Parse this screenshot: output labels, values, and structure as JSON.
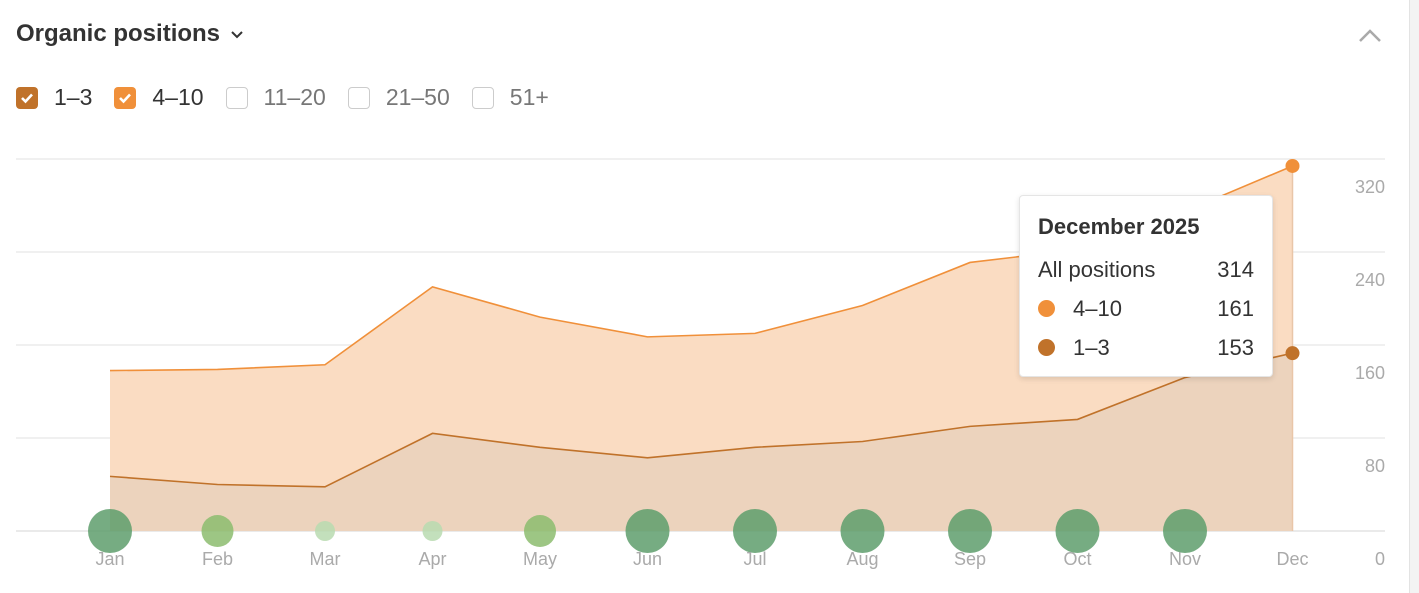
{
  "header": {
    "title": "Organic positions"
  },
  "filters": [
    {
      "label": "1–3",
      "checked": true,
      "color": "#c0722a"
    },
    {
      "label": "4–10",
      "checked": true,
      "color": "#f0903a"
    },
    {
      "label": "11–20",
      "checked": false
    },
    {
      "label": "21–50",
      "checked": false
    },
    {
      "label": "51+",
      "checked": false
    }
  ],
  "tooltip": {
    "title": "December 2025",
    "rows": [
      {
        "label": "All positions",
        "value": "314"
      },
      {
        "label": "4–10",
        "value": "161",
        "color": "#f0903a"
      },
      {
        "label": "1–3",
        "value": "153",
        "color": "#c0722a"
      }
    ]
  },
  "chart_data": {
    "type": "area",
    "stacked": true,
    "title": "Organic positions",
    "categories": [
      "Jan",
      "Feb",
      "Mar",
      "Apr",
      "May",
      "Jun",
      "Jul",
      "Aug",
      "Sep",
      "Oct",
      "Nov",
      "Dec"
    ],
    "series": [
      {
        "name": "1–3",
        "color": "#c0722a",
        "values": [
          47,
          40,
          38,
          84,
          72,
          63,
          72,
          77,
          90,
          96,
          132,
          153
        ]
      },
      {
        "name": "4–10",
        "color": "#f0903a",
        "values": [
          91,
          99,
          105,
          126,
          112,
          104,
          98,
          117,
          141,
          146,
          143,
          161
        ]
      }
    ],
    "yticks": [
      "0",
      "80",
      "160",
      "240",
      "320"
    ],
    "ylim": [
      0,
      320
    ],
    "grid": true,
    "y_axis_side": "right",
    "events": {
      "colors": [
        "#b8dbb0",
        "#8cbc6e",
        "#5e9d6c"
      ],
      "levels": [
        3,
        2,
        1,
        1,
        2,
        3,
        3,
        3,
        3,
        3,
        3,
        0
      ]
    }
  }
}
